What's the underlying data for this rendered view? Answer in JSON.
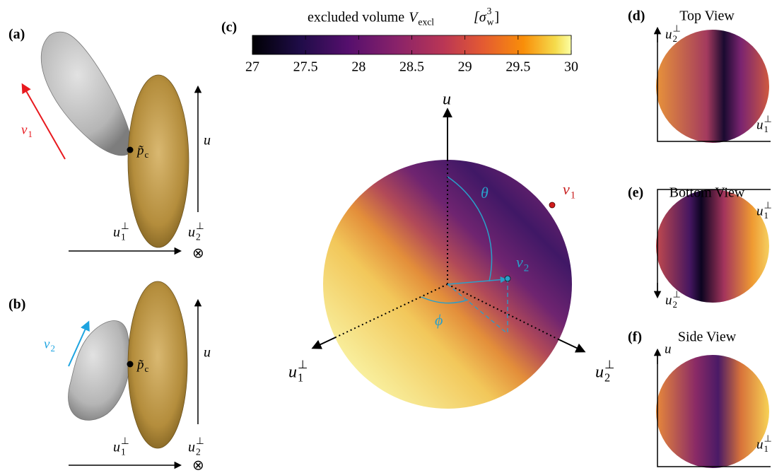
{
  "panel_a": {
    "label": "(a)",
    "v": {
      "base": "v",
      "sub": "1"
    },
    "p": {
      "base": "p̃",
      "sub": "c"
    },
    "u": "u",
    "u1": {
      "base": "u",
      "sub": "1",
      "sup": "⊥"
    },
    "u2": {
      "base": "u",
      "sub": "2",
      "sup": "⊥"
    },
    "otimes": "⊗"
  },
  "panel_b": {
    "label": "(b)",
    "v": {
      "base": "v",
      "sub": "2"
    },
    "p": {
      "base": "p̃",
      "sub": "c"
    },
    "u": "u",
    "u1": {
      "base": "u",
      "sub": "1",
      "sup": "⊥"
    },
    "u2": {
      "base": "u",
      "sub": "2",
      "sup": "⊥"
    },
    "otimes": "⊗"
  },
  "panel_c": {
    "label": "(c)",
    "colorbar": {
      "title": "excluded volume",
      "symbol": {
        "base": "V",
        "sub": "excl"
      },
      "unit": {
        "base": "[σ",
        "sub": "w",
        "sup": "3",
        "close": "]"
      },
      "range": [
        27,
        30
      ],
      "ticks": [
        27,
        27.5,
        28,
        28.5,
        29,
        29.5,
        30
      ]
    },
    "u": "u",
    "u1": {
      "base": "u",
      "sub": "1",
      "sup": "⊥"
    },
    "u2": {
      "base": "u",
      "sub": "2",
      "sup": "⊥"
    },
    "v1": {
      "base": "v",
      "sub": "1"
    },
    "v2": {
      "base": "v",
      "sub": "2"
    },
    "theta": "θ",
    "phi": "ϕ"
  },
  "panel_d": {
    "label": "(d)",
    "title": "Top View",
    "vertical": {
      "base": "u",
      "sub": "2",
      "sup": "⊥"
    },
    "horizontal": {
      "base": "u",
      "sub": "1",
      "sup": "⊥"
    }
  },
  "panel_e": {
    "label": "(e)",
    "title": "Bottom View",
    "horizontal": {
      "base": "u",
      "sub": "1",
      "sup": "⊥"
    },
    "vertical": {
      "base": "u",
      "sub": "2",
      "sup": "⊥"
    }
  },
  "panel_f": {
    "label": "(f)",
    "title": "Side View",
    "vertical": "u",
    "horizontal": {
      "base": "u",
      "sub": "1",
      "sup": "⊥"
    }
  }
}
